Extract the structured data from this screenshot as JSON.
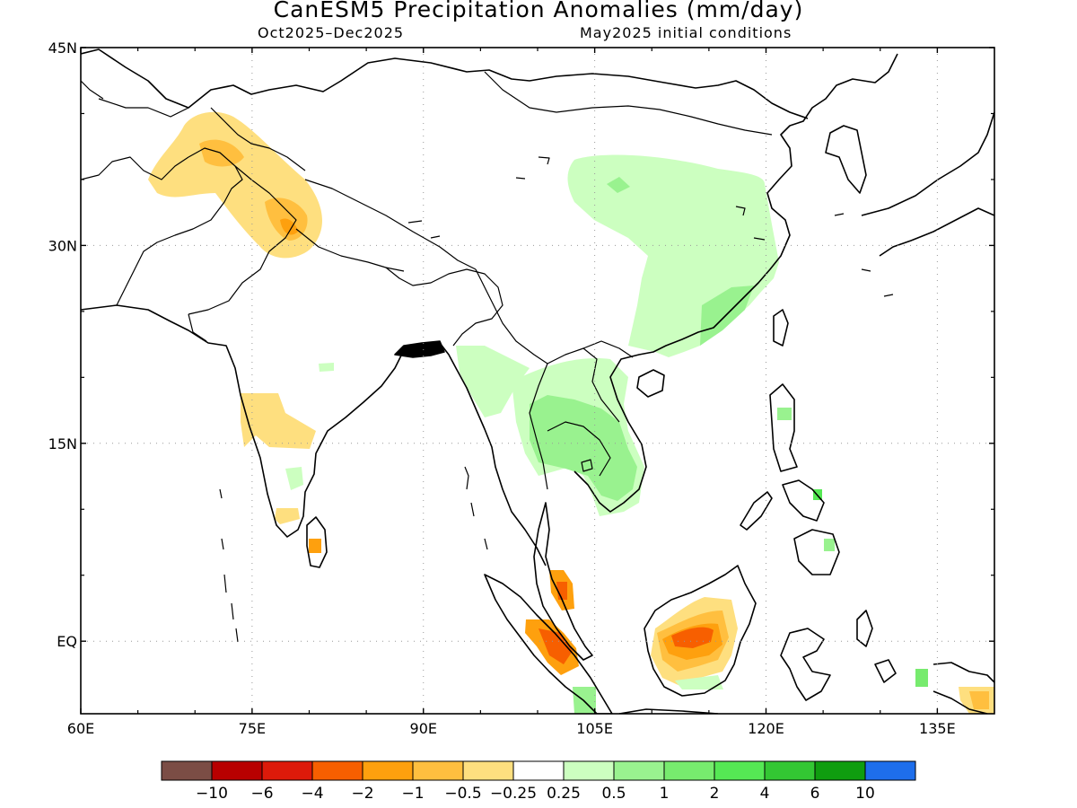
{
  "title": "CanESM5 Precipitation Anomalies (mm/day)",
  "subtitle_left": "Oct2025–Dec2025",
  "subtitle_right": "May2025 initial conditions",
  "map": {
    "lon_range": [
      60,
      140
    ],
    "lat_range": [
      -5.5,
      45
    ],
    "gridlines": "dotted",
    "x_ticks": [
      {
        "value": 60,
        "label": "60E"
      },
      {
        "value": 75,
        "label": "75E"
      },
      {
        "value": 90,
        "label": "90E"
      },
      {
        "value": 105,
        "label": "105E"
      },
      {
        "value": 120,
        "label": "120E"
      },
      {
        "value": 135,
        "label": "135E"
      }
    ],
    "y_ticks": [
      {
        "value": 45,
        "label": "45N"
      },
      {
        "value": 30,
        "label": "30N"
      },
      {
        "value": 15,
        "label": "15N"
      },
      {
        "value": 0,
        "label": "EQ"
      }
    ]
  },
  "colorbar": {
    "colors": [
      "#7b4d45",
      "#b80000",
      "#dd1a0a",
      "#f75f00",
      "#fea00e",
      "#ffbf3f",
      "#fedf7f",
      "#ffffff",
      "#ccffc0",
      "#99f28f",
      "#77eb6e",
      "#55e854",
      "#33c733",
      "#0f9d0f",
      "#1e6eeb"
    ],
    "labels": [
      "−10",
      "−6",
      "−4",
      "−2",
      "−1",
      "−0.5",
      "−0.25",
      "0.25",
      "0.5",
      "1",
      "2",
      "4",
      "6",
      "10"
    ]
  }
}
